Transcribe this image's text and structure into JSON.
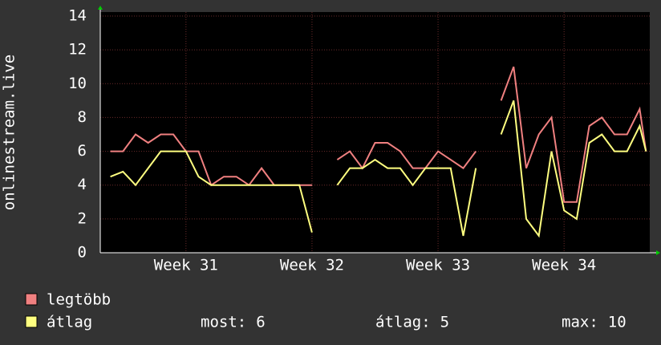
{
  "chart_data": {
    "type": "line",
    "y_label": "onlinestream.live",
    "x": [
      30.4,
      30.5,
      30.6,
      30.7,
      30.8,
      30.9,
      31.0,
      31.1,
      31.2,
      31.3,
      31.4,
      31.5,
      31.6,
      31.7,
      31.8,
      31.9,
      32.0,
      32.1,
      32.2,
      32.3,
      32.4,
      32.5,
      32.6,
      32.7,
      32.8,
      32.9,
      33.0,
      33.1,
      33.2,
      33.3,
      33.4,
      33.5,
      33.6,
      33.7,
      33.8,
      33.9,
      34.0,
      34.1,
      34.2,
      34.3,
      34.4,
      34.5,
      34.6,
      34.65
    ],
    "series": [
      {
        "name": "legtöbb",
        "color": "#f08080",
        "values": [
          6,
          6,
          7,
          6.5,
          7,
          7,
          6,
          6,
          4,
          4.5,
          4.5,
          4,
          5,
          4,
          4,
          4,
          4,
          null,
          5.5,
          6,
          5,
          6.5,
          6.5,
          6,
          5,
          5,
          6,
          5.5,
          5,
          6,
          null,
          9,
          11,
          5,
          7,
          8,
          3,
          3,
          7.5,
          8,
          7,
          7,
          8.5,
          6
        ]
      },
      {
        "name": "átlag",
        "color": "#ffff80",
        "values": [
          4.5,
          4.8,
          4,
          5,
          6,
          6,
          6,
          4.5,
          4,
          4,
          4,
          4,
          4,
          4,
          4,
          4,
          1.2,
          null,
          4,
          5,
          5,
          5.5,
          5,
          5,
          4,
          5,
          5,
          5,
          1,
          5,
          null,
          7,
          9,
          2,
          1,
          6,
          2.5,
          2,
          6.5,
          7,
          6,
          6,
          7.5,
          6
        ]
      }
    ],
    "xlim": [
      30.32,
      34.68
    ],
    "xticks": [
      {
        "value": 31,
        "label": "Week 31"
      },
      {
        "value": 32,
        "label": "Week 32"
      },
      {
        "value": 33,
        "label": "Week 33"
      },
      {
        "value": 34,
        "label": "Week 34"
      }
    ],
    "ylim": [
      0,
      14
    ],
    "yticks": [
      0,
      2,
      4,
      6,
      8,
      10,
      12,
      14
    ],
    "grid": true,
    "stats": [
      {
        "label": "most:",
        "value": 6
      },
      {
        "label": "átlag:",
        "value": 5
      },
      {
        "label": "max:",
        "value": 10
      }
    ]
  }
}
